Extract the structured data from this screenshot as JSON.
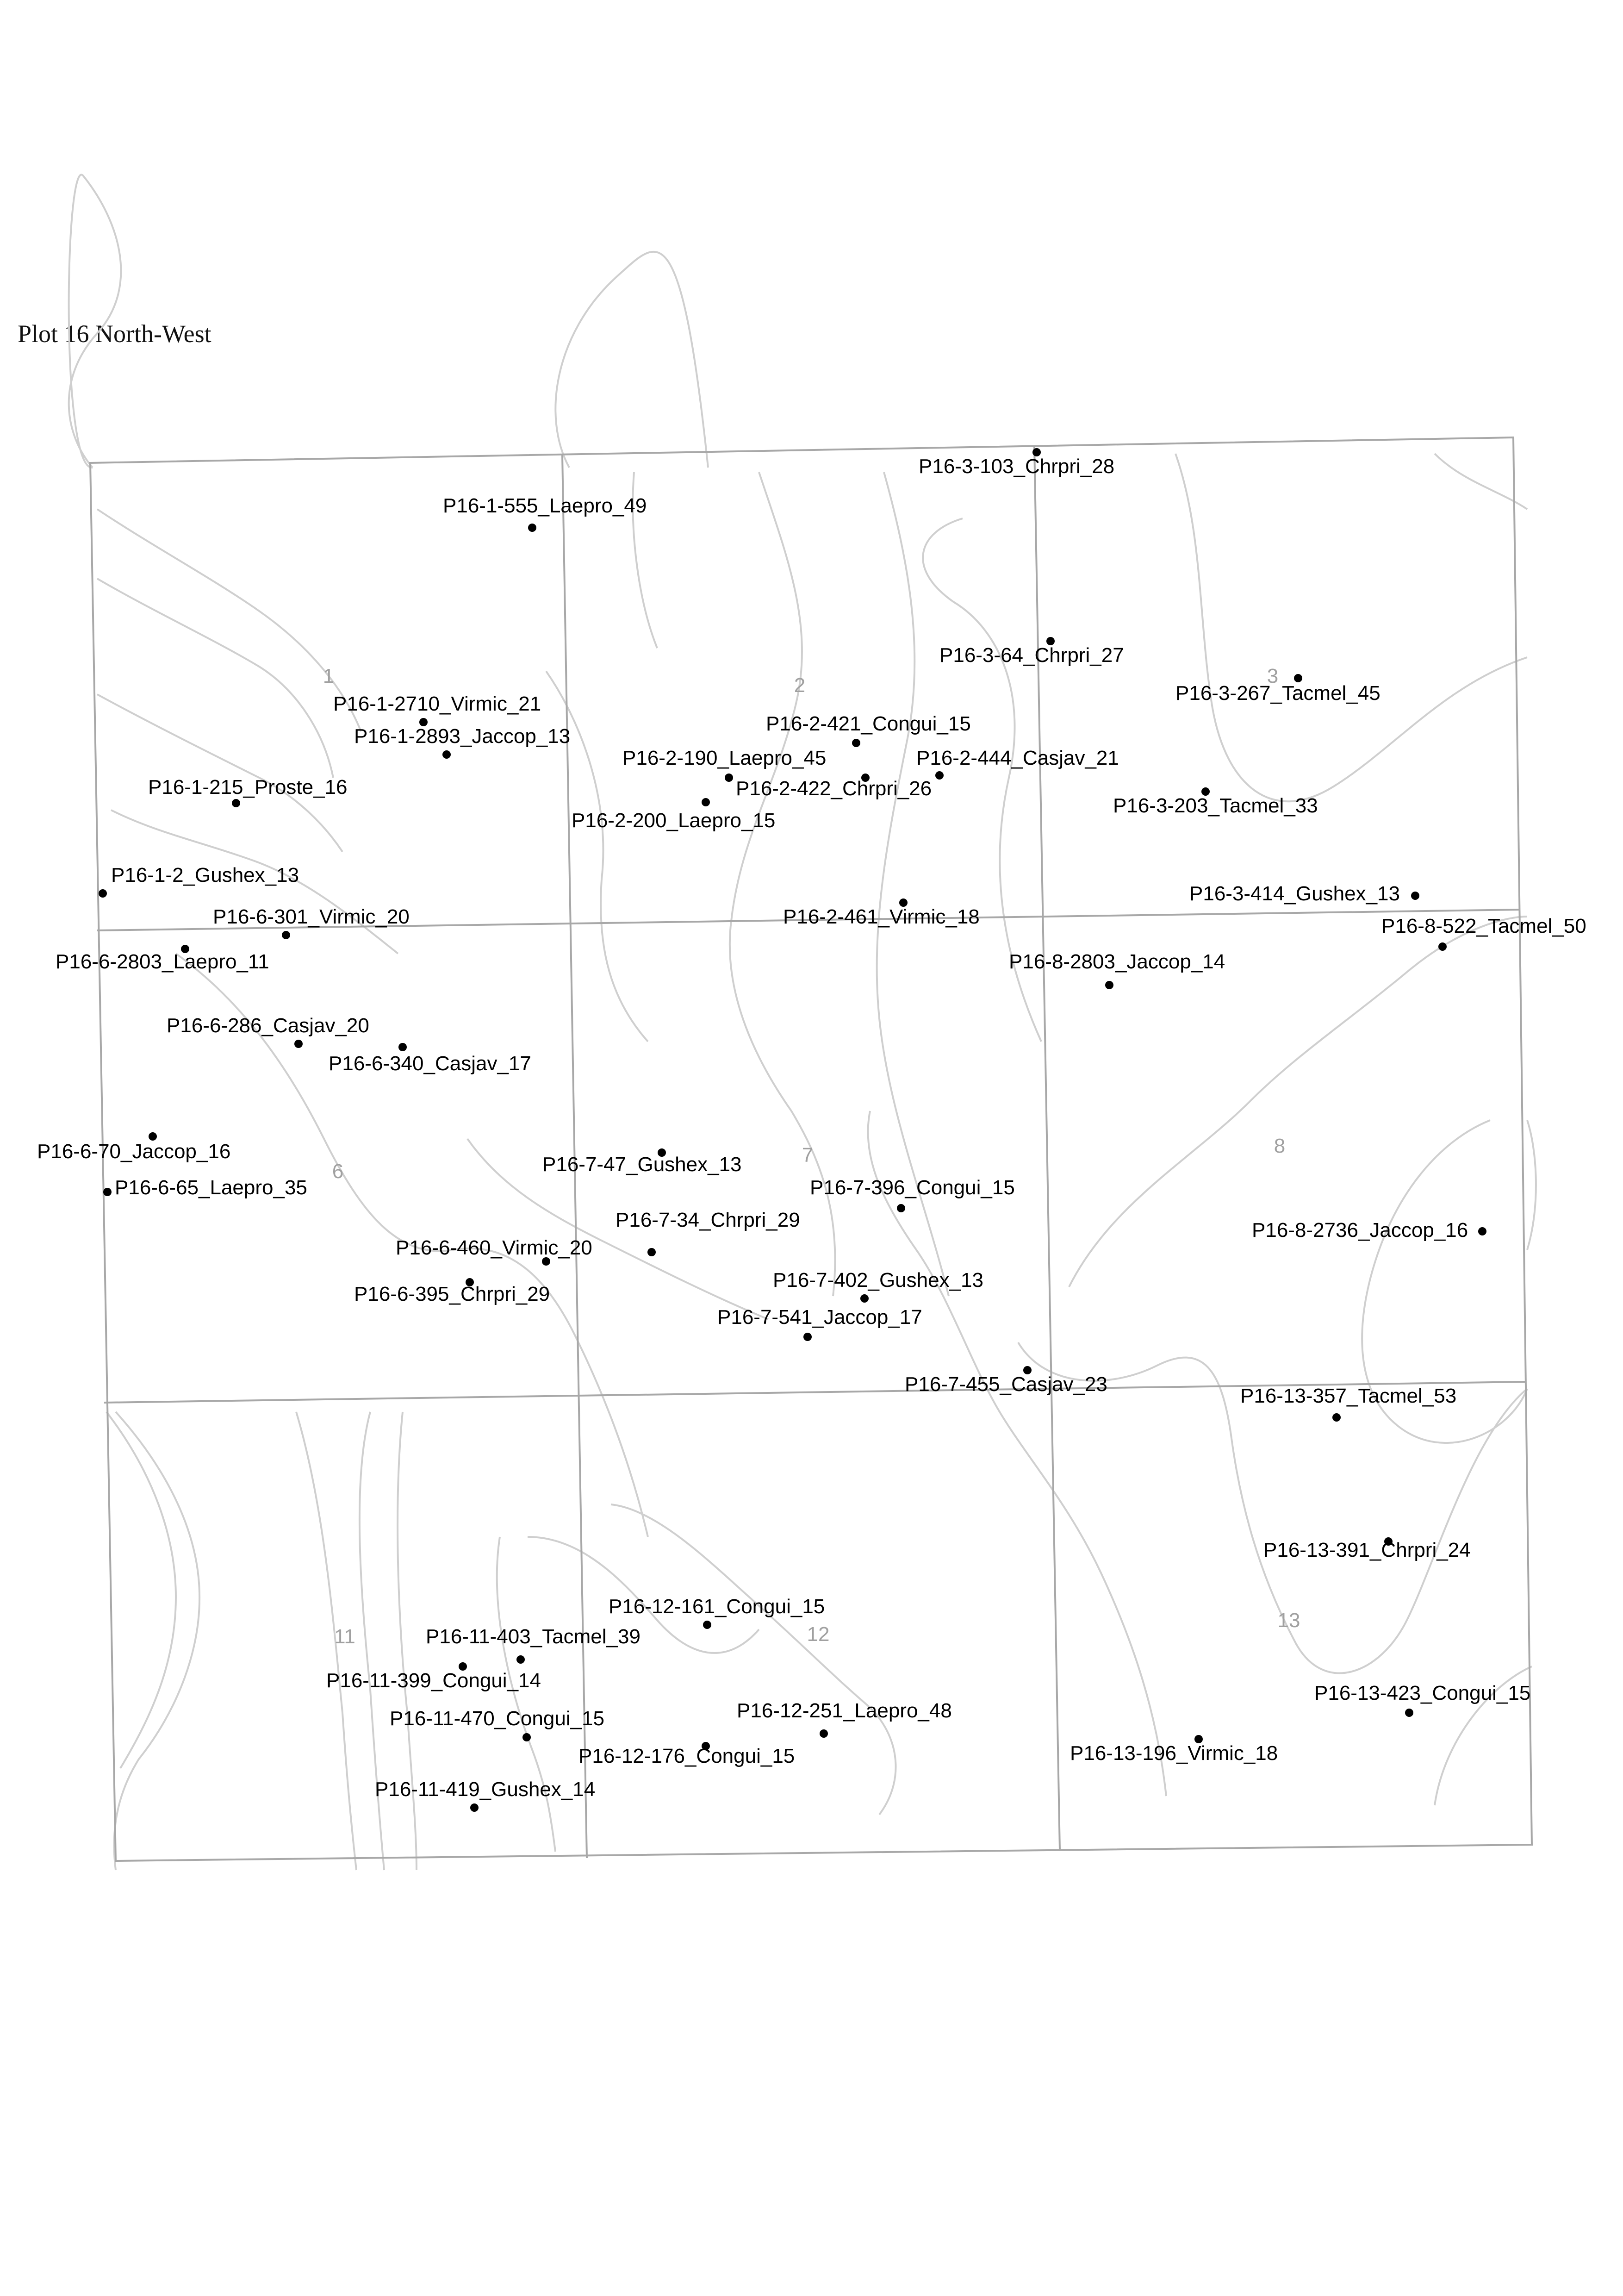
{
  "map": {
    "title": "Plot 16 North-West",
    "colors": {
      "grid": "#a8a8a8",
      "contour": "#cfcfcf",
      "tree": "#000000",
      "subplot_label": "#a0a0a0"
    },
    "subplot_labels": [
      "1",
      "2",
      "3",
      "6",
      "7",
      "8",
      "11",
      "12",
      "13"
    ],
    "trees": [
      {
        "id": "P16-1-555",
        "species": "Laepro",
        "dbh": 49,
        "label": "P16-1-555_Laepro_49"
      },
      {
        "id": "P16-1-2710",
        "species": "Virmic",
        "dbh": 21,
        "label": "P16-1-2710_Virmic_21"
      },
      {
        "id": "P16-1-2893",
        "species": "Jaccop",
        "dbh": 13,
        "label": "P16-1-2893_Jaccop_13"
      },
      {
        "id": "P16-1-215",
        "species": "Proste",
        "dbh": 16,
        "label": "P16-1-215_Proste_16"
      },
      {
        "id": "P16-1-2",
        "species": "Gushex",
        "dbh": 13,
        "label": "P16-1-2_Gushex_13"
      },
      {
        "id": "P16-2-421",
        "species": "Congui",
        "dbh": 15,
        "label": "P16-2-421_Congui_15"
      },
      {
        "id": "P16-2-190",
        "species": "Laepro",
        "dbh": 45,
        "label": "P16-2-190_Laepro_45"
      },
      {
        "id": "P16-2-422",
        "species": "Chrpri",
        "dbh": 26,
        "label": "P16-2-422_Chrpri_26"
      },
      {
        "id": "P16-2-444",
        "species": "Casjav",
        "dbh": 21,
        "label": "P16-2-444_Casjav_21"
      },
      {
        "id": "P16-2-200",
        "species": "Laepro",
        "dbh": 15,
        "label": "P16-2-200_Laepro_15"
      },
      {
        "id": "P16-2-461",
        "species": "Virmic",
        "dbh": 18,
        "label": "P16-2-461_Virmic_18"
      },
      {
        "id": "P16-3-103",
        "species": "Chrpri",
        "dbh": 28,
        "label": "P16-3-103_Chrpri_28"
      },
      {
        "id": "P16-3-64",
        "species": "Chrpri",
        "dbh": 27,
        "label": "P16-3-64_Chrpri_27"
      },
      {
        "id": "P16-3-267",
        "species": "Tacmel",
        "dbh": 45,
        "label": "P16-3-267_Tacmel_45"
      },
      {
        "id": "P16-3-203",
        "species": "Tacmel",
        "dbh": 33,
        "label": "P16-3-203_Tacmel_33"
      },
      {
        "id": "P16-3-414",
        "species": "Gushex",
        "dbh": 13,
        "label": "P16-3-414_Gushex_13"
      },
      {
        "id": "P16-6-301",
        "species": "Virmic",
        "dbh": 20,
        "label": "P16-6-301_Virmic_20"
      },
      {
        "id": "P16-6-2803",
        "species": "Laepro",
        "dbh": 11,
        "label": "P16-6-2803_Laepro_11"
      },
      {
        "id": "P16-6-286",
        "species": "Casjav",
        "dbh": 20,
        "label": "P16-6-286_Casjav_20"
      },
      {
        "id": "P16-6-340",
        "species": "Casjav",
        "dbh": 17,
        "label": "P16-6-340_Casjav_17"
      },
      {
        "id": "P16-6-70",
        "species": "Jaccop",
        "dbh": 16,
        "label": "P16-6-70_Jaccop_16"
      },
      {
        "id": "P16-6-65",
        "species": "Laepro",
        "dbh": 35,
        "label": "P16-6-65_Laepro_35"
      },
      {
        "id": "P16-6-460",
        "species": "Virmic",
        "dbh": 20,
        "label": "P16-6-460_Virmic_20"
      },
      {
        "id": "P16-6-395",
        "species": "Chrpri",
        "dbh": 29,
        "label": "P16-6-395_Chrpri_29"
      },
      {
        "id": "P16-7-47",
        "species": "Gushex",
        "dbh": 13,
        "label": "P16-7-47_Gushex_13"
      },
      {
        "id": "P16-7-34",
        "species": "Chrpri",
        "dbh": 29,
        "label": "P16-7-34_Chrpri_29"
      },
      {
        "id": "P16-7-396",
        "species": "Congui",
        "dbh": 15,
        "label": "P16-7-396_Congui_15"
      },
      {
        "id": "P16-7-402",
        "species": "Gushex",
        "dbh": 13,
        "label": "P16-7-402_Gushex_13"
      },
      {
        "id": "P16-7-541",
        "species": "Jaccop",
        "dbh": 17,
        "label": "P16-7-541_Jaccop_17"
      },
      {
        "id": "P16-7-455",
        "species": "Casjav",
        "dbh": 23,
        "label": "P16-7-455_Casjav_23"
      },
      {
        "id": "P16-8-522",
        "species": "Tacmel",
        "dbh": 50,
        "label": "P16-8-522_Tacmel_50"
      },
      {
        "id": "P16-8-2803",
        "species": "Jaccop",
        "dbh": 14,
        "label": "P16-8-2803_Jaccop_14"
      },
      {
        "id": "P16-8-2736",
        "species": "Jaccop",
        "dbh": 16,
        "label": "P16-8-2736_Jaccop_16"
      },
      {
        "id": "P16-11-403",
        "species": "Tacmel",
        "dbh": 39,
        "label": "P16-11-403_Tacmel_39"
      },
      {
        "id": "P16-11-399",
        "species": "Congui",
        "dbh": 14,
        "label": "P16-11-399_Congui_14"
      },
      {
        "id": "P16-11-470",
        "species": "Congui",
        "dbh": 15,
        "label": "P16-11-470_Congui_15"
      },
      {
        "id": "P16-11-419",
        "species": "Gushex",
        "dbh": 14,
        "label": "P16-11-419_Gushex_14"
      },
      {
        "id": "P16-12-161",
        "species": "Congui",
        "dbh": 15,
        "label": "P16-12-161_Congui_15"
      },
      {
        "id": "P16-12-251",
        "species": "Laepro",
        "dbh": 48,
        "label": "P16-12-251_Laepro_48"
      },
      {
        "id": "P16-12-176",
        "species": "Congui",
        "dbh": 15,
        "label": "P16-12-176_Congui_15"
      },
      {
        "id": "P16-13-357",
        "species": "Tacmel",
        "dbh": 53,
        "label": "P16-13-357_Tacmel_53"
      },
      {
        "id": "P16-13-391",
        "species": "Chrpri",
        "dbh": 24,
        "label": "P16-13-391_Chrpri_24"
      },
      {
        "id": "P16-13-423",
        "species": "Congui",
        "dbh": 15,
        "label": "P16-13-423_Congui_15"
      },
      {
        "id": "P16-13-196",
        "species": "Virmic",
        "dbh": 18,
        "label": "P16-13-196_Virmic_18"
      }
    ]
  }
}
